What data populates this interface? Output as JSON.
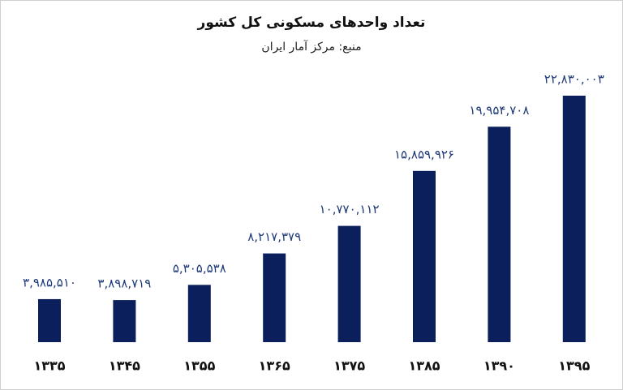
{
  "chart_data": {
    "type": "bar",
    "title": "تعداد واحدهای مسکونی کل کشور",
    "subtitle": "منبع: مرکز آمار ایران",
    "categories": [
      "۱۳۳۵",
      "۱۳۴۵",
      "۱۳۵۵",
      "۱۳۶۵",
      "۱۳۷۵",
      "۱۳۸۵",
      "۱۳۹۰",
      "۱۳۹۵"
    ],
    "values": [
      3985510,
      3898719,
      5305538,
      8217379,
      10770112,
      15859926,
      19954708,
      22830003
    ],
    "value_labels": [
      "۳,۹۸۵,۵۱۰",
      "۳,۸۹۸,۷۱۹",
      "۵,۳۰۵,۵۳۸",
      "۸,۲۱۷,۳۷۹",
      "۱۰,۷۷۰,۱۱۲",
      "۱۵,۸۵۹,۹۲۶",
      "۱۹,۹۵۴,۷۰۸",
      "۲۲,۸۳۰,۰۰۳"
    ],
    "color": "#0b1f5c"
  }
}
